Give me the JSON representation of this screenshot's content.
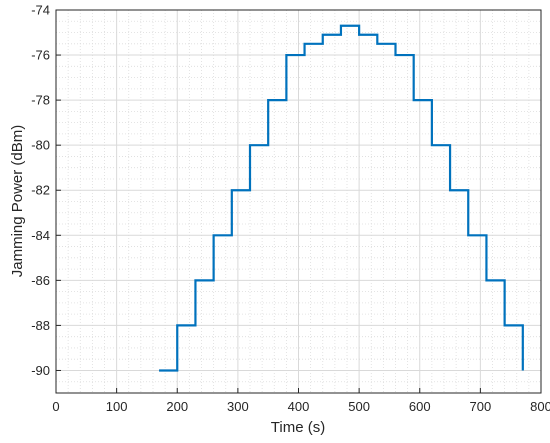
{
  "chart_data": {
    "type": "line",
    "title": "",
    "xlabel": "Time (s)",
    "ylabel": "Jamming Power (dBm)",
    "xlim": [
      0,
      800
    ],
    "ylim": [
      -91,
      -74
    ],
    "xticks": [
      0,
      100,
      200,
      300,
      400,
      500,
      600,
      700,
      800
    ],
    "xtick_labels": [
      "0",
      "100",
      "200",
      "300",
      "400",
      "500",
      "600",
      "700",
      "800"
    ],
    "yticks": [
      -74,
      -76,
      -78,
      -80,
      -82,
      -84,
      -86,
      -88,
      -90
    ],
    "ytick_labels": [
      "-74",
      "-76",
      "-78",
      "-80",
      "-82",
      "-84",
      "-86",
      "-88",
      "-90"
    ],
    "grid": "major and minor",
    "line_color": "#0072BD",
    "series": [
      {
        "x": [
          170,
          200,
          200,
          230,
          230,
          260,
          260,
          290,
          290,
          320,
          320,
          350,
          350,
          380,
          380,
          410,
          410,
          440,
          440,
          470,
          470,
          500,
          500,
          530,
          530,
          560,
          560,
          590,
          590,
          620,
          620,
          650,
          650,
          680,
          680,
          710,
          710,
          740,
          740,
          770,
          770
        ],
        "y": [
          -90,
          -90,
          -88,
          -88,
          -86,
          -86,
          -84,
          -84,
          -82,
          -82,
          -80,
          -80,
          -78,
          -78,
          -76,
          -76,
          -75.5,
          -75.5,
          -75.1,
          -75.1,
          -74.7,
          -74.7,
          -75.1,
          -75.1,
          -75.5,
          -75.5,
          -76,
          -76,
          -78,
          -78,
          -80,
          -80,
          -82,
          -82,
          -84,
          -84,
          -86,
          -86,
          -88,
          -88,
          -90
        ]
      }
    ]
  }
}
